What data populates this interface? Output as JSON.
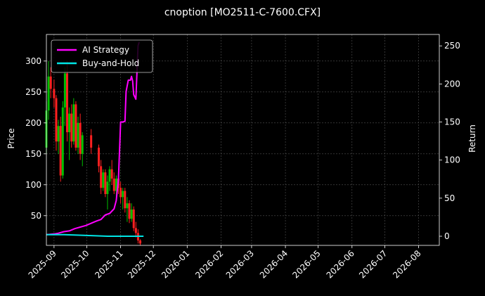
{
  "chart_data": {
    "type": "candlestick-line",
    "title": "cnoption [MO2511-C-7600.CFX]",
    "ylabel": "Price",
    "y2label": "Return",
    "ylim": [
      2,
      343
    ],
    "y2lim": [
      -12,
      265
    ],
    "y_ticks": [
      50,
      100,
      150,
      200,
      250,
      300
    ],
    "y2_ticks": [
      0,
      50,
      100,
      150,
      200,
      250
    ],
    "x_tick_labels": [
      "2025-09",
      "2025-10",
      "2025-11",
      "2025-12",
      "2026-01",
      "2026-02",
      "2026-03",
      "2026-04",
      "2026-05",
      "2026-06",
      "2026-07",
      "2026-08"
    ],
    "x_ticks": [
      "2025-09-01",
      "2025-10-01",
      "2025-11-01",
      "2025-12-01",
      "2026-01-01",
      "2026-02-01",
      "2026-03-01",
      "2026-04-01",
      "2026-05-01",
      "2026-06-01",
      "2026-07-01",
      "2026-08-01"
    ],
    "xlim": [
      "2025-08-25",
      "2026-08-20"
    ],
    "grid": true,
    "legend_position": "top-left",
    "colors": {
      "background": "#000000",
      "up": "#00c000",
      "down": "#ff2020",
      "ai_strategy": "#ff00ff",
      "buy_and_hold": "#00e5e5"
    },
    "series": [
      {
        "name": "AI Strategy",
        "axis": "right",
        "x": [
          "2025-08-25",
          "2025-09-01",
          "2025-09-05",
          "2025-09-10",
          "2025-09-15",
          "2025-09-20",
          "2025-09-25",
          "2025-09-30",
          "2025-10-05",
          "2025-10-10",
          "2025-10-14",
          "2025-10-18",
          "2025-10-22",
          "2025-10-26",
          "2025-10-28",
          "2025-10-30",
          "2025-11-01",
          "2025-11-03",
          "2025-11-05",
          "2025-11-06",
          "2025-11-08",
          "2025-11-10",
          "2025-11-11",
          "2025-11-12",
          "2025-11-13",
          "2025-11-15",
          "2025-11-17",
          "2025-11-18"
        ],
        "values": [
          2,
          3,
          4,
          6,
          7,
          10,
          12,
          14,
          17,
          20,
          22,
          28,
          30,
          36,
          47,
          75,
          150,
          150,
          151,
          190,
          205,
          205,
          210,
          204,
          186,
          180,
          250,
          255
        ]
      },
      {
        "name": "Buy-and-Hold",
        "axis": "right",
        "x": [
          "2025-08-25",
          "2025-09-10",
          "2025-10-01",
          "2025-10-20",
          "2025-11-10",
          "2025-11-22"
        ],
        "values": [
          2,
          2,
          1,
          0,
          0,
          0
        ]
      }
    ],
    "candles": [
      {
        "x": "2025-08-25",
        "open": 160,
        "high": 235,
        "low": 150,
        "close": 220
      },
      {
        "x": "2025-08-27",
        "open": 220,
        "high": 300,
        "low": 205,
        "close": 275
      },
      {
        "x": "2025-08-29",
        "open": 275,
        "high": 290,
        "low": 240,
        "close": 255
      },
      {
        "x": "2025-09-01",
        "open": 255,
        "high": 270,
        "low": 225,
        "close": 240
      },
      {
        "x": "2025-09-03",
        "open": 240,
        "high": 245,
        "low": 155,
        "close": 170
      },
      {
        "x": "2025-09-05",
        "open": 170,
        "high": 205,
        "low": 150,
        "close": 195
      },
      {
        "x": "2025-09-07",
        "open": 195,
        "high": 210,
        "low": 105,
        "close": 115
      },
      {
        "x": "2025-09-09",
        "open": 115,
        "high": 235,
        "low": 110,
        "close": 225
      },
      {
        "x": "2025-09-11",
        "open": 225,
        "high": 290,
        "low": 195,
        "close": 280
      },
      {
        "x": "2025-09-13",
        "open": 280,
        "high": 300,
        "low": 170,
        "close": 185
      },
      {
        "x": "2025-09-15",
        "open": 185,
        "high": 225,
        "low": 140,
        "close": 215
      },
      {
        "x": "2025-09-17",
        "open": 215,
        "high": 230,
        "low": 160,
        "close": 170
      },
      {
        "x": "2025-09-19",
        "open": 170,
        "high": 240,
        "low": 165,
        "close": 230
      },
      {
        "x": "2025-09-21",
        "open": 230,
        "high": 235,
        "low": 155,
        "close": 160
      },
      {
        "x": "2025-09-23",
        "open": 160,
        "high": 210,
        "low": 150,
        "close": 200
      },
      {
        "x": "2025-09-25",
        "open": 200,
        "high": 215,
        "low": 140,
        "close": 150
      },
      {
        "x": "2025-09-27",
        "open": 150,
        "high": 185,
        "low": 130,
        "close": 180
      },
      {
        "x": "2025-10-05",
        "open": 180,
        "high": 190,
        "low": 150,
        "close": 160
      },
      {
        "x": "2025-10-12",
        "open": 160,
        "high": 165,
        "low": 120,
        "close": 130
      },
      {
        "x": "2025-10-14",
        "open": 130,
        "high": 140,
        "low": 85,
        "close": 95
      },
      {
        "x": "2025-10-16",
        "open": 95,
        "high": 125,
        "low": 90,
        "close": 120
      },
      {
        "x": "2025-10-18",
        "open": 120,
        "high": 125,
        "low": 80,
        "close": 85
      },
      {
        "x": "2025-10-20",
        "open": 85,
        "high": 115,
        "low": 60,
        "close": 105
      },
      {
        "x": "2025-10-22",
        "open": 105,
        "high": 130,
        "low": 90,
        "close": 125
      },
      {
        "x": "2025-10-24",
        "open": 125,
        "high": 140,
        "low": 100,
        "close": 110
      },
      {
        "x": "2025-10-26",
        "open": 110,
        "high": 120,
        "low": 85,
        "close": 90
      },
      {
        "x": "2025-10-28",
        "open": 90,
        "high": 115,
        "low": 80,
        "close": 110
      },
      {
        "x": "2025-10-30",
        "open": 110,
        "high": 115,
        "low": 85,
        "close": 95
      },
      {
        "x": "2025-11-01",
        "open": 95,
        "high": 105,
        "low": 70,
        "close": 80
      },
      {
        "x": "2025-11-03",
        "open": 80,
        "high": 95,
        "low": 60,
        "close": 90
      },
      {
        "x": "2025-11-05",
        "open": 90,
        "high": 95,
        "low": 55,
        "close": 62
      },
      {
        "x": "2025-11-07",
        "open": 62,
        "high": 80,
        "low": 40,
        "close": 70
      },
      {
        "x": "2025-11-09",
        "open": 70,
        "high": 75,
        "low": 38,
        "close": 45
      },
      {
        "x": "2025-11-11",
        "open": 45,
        "high": 70,
        "low": 40,
        "close": 60
      },
      {
        "x": "2025-11-13",
        "open": 60,
        "high": 65,
        "low": 25,
        "close": 30
      },
      {
        "x": "2025-11-15",
        "open": 30,
        "high": 40,
        "low": 15,
        "close": 22
      },
      {
        "x": "2025-11-17",
        "open": 22,
        "high": 28,
        "low": 5,
        "close": 10
      },
      {
        "x": "2025-11-19",
        "open": 10,
        "high": 12,
        "low": 2,
        "close": 5
      }
    ]
  }
}
